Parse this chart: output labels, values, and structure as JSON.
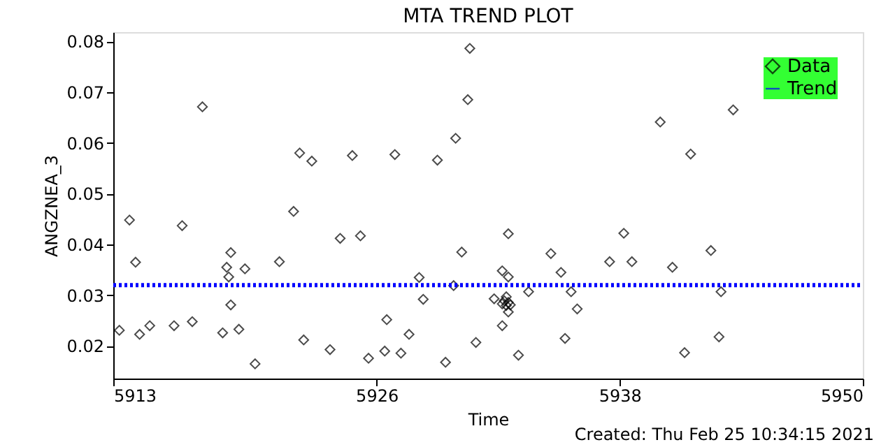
{
  "chart_data": {
    "type": "scatter",
    "title": "MTA TREND PLOT",
    "xlabel": "Time",
    "ylabel": "ANGZNEA_3",
    "annotations": [
      "Created: Thu Feb 25 10:34:15 2021"
    ],
    "xlim": [
      5913,
      5950
    ],
    "xticks": [
      5913,
      5926,
      5938,
      5950
    ],
    "ylim": [
      0.0136,
      0.0818
    ],
    "yticks": [
      0.02,
      0.03,
      0.04,
      0.05,
      0.06,
      0.07,
      0.08
    ],
    "grid": false,
    "legend": "top right",
    "series": [
      {
        "name": "Data",
        "color": "#000000",
        "marker": "diamond",
        "x": [
          5913.3,
          5913.8,
          5914.1,
          5914.3,
          5914.8,
          5916.0,
          5916.4,
          5916.9,
          5917.4,
          5918.4,
          5918.6,
          5918.7,
          5918.8,
          5918.8,
          5919.2,
          5919.5,
          5920.0,
          5921.2,
          5921.9,
          5922.2,
          5922.4,
          5922.8,
          5923.7,
          5924.2,
          5924.8,
          5925.2,
          5925.6,
          5926.4,
          5926.5,
          5926.9,
          5927.2,
          5927.6,
          5928.1,
          5928.3,
          5929.0,
          5929.4,
          5929.8,
          5929.9,
          5930.2,
          5930.5,
          5930.6,
          5930.9,
          5931.8,
          5932.2,
          5932.2,
          5932.5,
          5932.5,
          5932.3,
          5932.5,
          5932.2,
          5932.6,
          5932.4,
          5932.5,
          5932.4,
          5933.0,
          5933.5,
          5934.6,
          5935.1,
          5935.3,
          5935.6,
          5935.9,
          5937.5,
          5938.2,
          5938.6,
          5940.0,
          5940.6,
          5941.2,
          5941.5,
          5942.5,
          5942.9,
          5943.0,
          5943.6
        ],
        "values": [
          0.0231,
          0.0448,
          0.0365,
          0.0223,
          0.024,
          0.024,
          0.0437,
          0.0248,
          0.0671,
          0.0226,
          0.0355,
          0.0336,
          0.0384,
          0.0281,
          0.0233,
          0.0352,
          0.0165,
          0.0366,
          0.0465,
          0.058,
          0.0212,
          0.0564,
          0.0193,
          0.0412,
          0.0575,
          0.0417,
          0.0176,
          0.019,
          0.0252,
          0.0577,
          0.0186,
          0.0223,
          0.0335,
          0.0292,
          0.0566,
          0.0168,
          0.0319,
          0.0609,
          0.0385,
          0.0685,
          0.0786,
          0.0207,
          0.0293,
          0.0348,
          0.024,
          0.0336,
          0.0421,
          0.0289,
          0.0286,
          0.0283,
          0.0281,
          0.028,
          0.0267,
          0.0297,
          0.0182,
          0.0307,
          0.0382,
          0.0345,
          0.0215,
          0.0307,
          0.0273,
          0.0366,
          0.0422,
          0.0366,
          0.0641,
          0.0355,
          0.0187,
          0.0578,
          0.0388,
          0.0218,
          0.0307,
          0.0665
        ]
      },
      {
        "name": "Trend",
        "type": "line",
        "color": "#0000ff",
        "line_style": "dotted",
        "x": [
          5913,
          5950
        ],
        "values": [
          0.032,
          0.032
        ]
      }
    ]
  }
}
